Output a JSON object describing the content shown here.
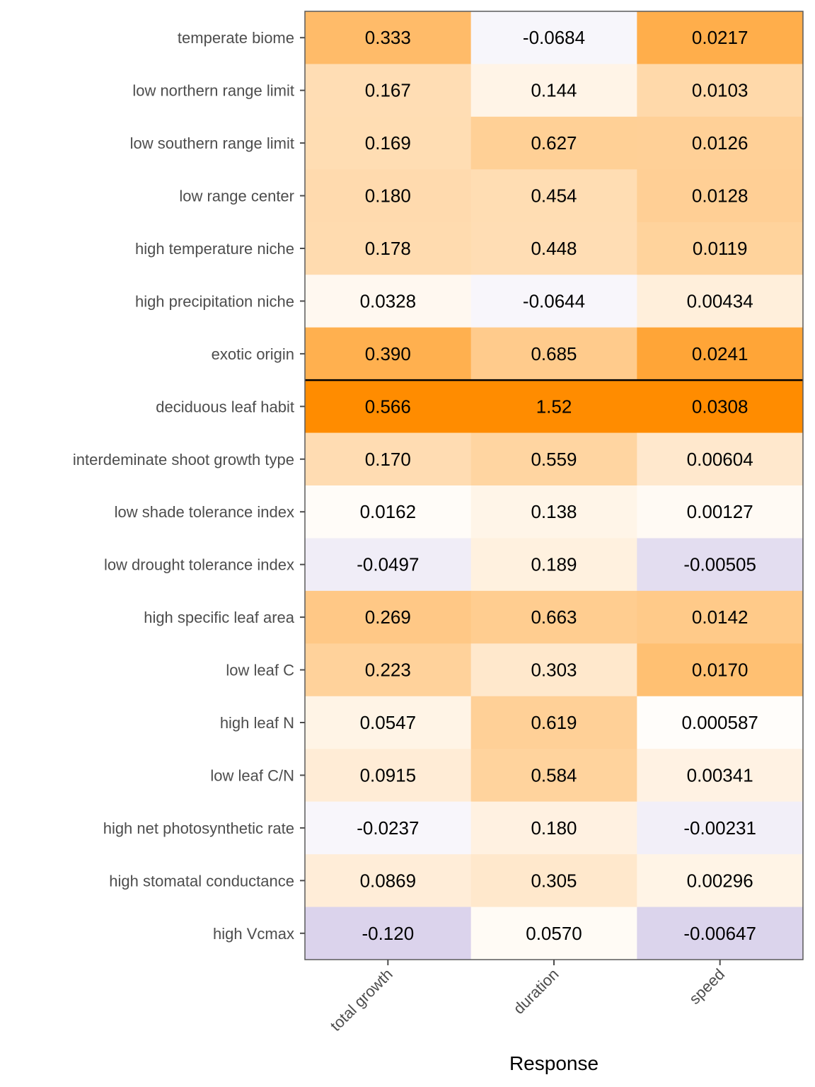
{
  "chart_data": {
    "type": "heatmap",
    "title": "",
    "xlabel": "Response",
    "ylabel": "",
    "columns": [
      "total growth",
      "duration",
      "speed"
    ],
    "rows": [
      "temperate biome",
      "low northern range limit",
      "low southern range limit",
      "low range center",
      "high temperature niche",
      "high precipitation niche",
      "exotic origin",
      "deciduous leaf habit",
      "interdeminate shoot growth type",
      "low shade tolerance index",
      "low drought tolerance index",
      "high specific leaf area",
      "low leaf C",
      "high leaf N",
      "low leaf C/N",
      "high net photosynthetic rate",
      "high stomatal conductance",
      "high Vcmax"
    ],
    "values": [
      [
        0.333,
        -0.0684,
        0.0217
      ],
      [
        0.167,
        0.144,
        0.0103
      ],
      [
        0.169,
        0.627,
        0.0126
      ],
      [
        0.18,
        0.454,
        0.0128
      ],
      [
        0.178,
        0.448,
        0.0119
      ],
      [
        0.0328,
        -0.0644,
        0.00434
      ],
      [
        0.39,
        0.685,
        0.0241
      ],
      [
        0.566,
        1.52,
        0.0308
      ],
      [
        0.17,
        0.559,
        0.00604
      ],
      [
        0.0162,
        0.138,
        0.00127
      ],
      [
        -0.0497,
        0.189,
        -0.00505
      ],
      [
        0.269,
        0.663,
        0.0142
      ],
      [
        0.223,
        0.303,
        0.017
      ],
      [
        0.0547,
        0.619,
        0.000587
      ],
      [
        0.0915,
        0.584,
        0.00341
      ],
      [
        -0.0237,
        0.18,
        -0.00231
      ],
      [
        0.0869,
        0.305,
        0.00296
      ],
      [
        -0.12,
        0.057,
        -0.00647
      ]
    ],
    "labels": [
      [
        "0.333",
        "-0.0684",
        "0.0217"
      ],
      [
        "0.167",
        "0.144",
        "0.0103"
      ],
      [
        "0.169",
        "0.627",
        "0.0126"
      ],
      [
        "0.180",
        "0.454",
        "0.0128"
      ],
      [
        "0.178",
        "0.448",
        "0.0119"
      ],
      [
        "0.0328",
        "-0.0644",
        "0.00434"
      ],
      [
        "0.390",
        "0.685",
        "0.0241"
      ],
      [
        "0.566",
        "1.52",
        "0.0308"
      ],
      [
        "0.170",
        "0.559",
        "0.00604"
      ],
      [
        "0.0162",
        "0.138",
        "0.00127"
      ],
      [
        "-0.0497",
        "0.189",
        "-0.00505"
      ],
      [
        "0.269",
        "0.663",
        "0.0142"
      ],
      [
        "0.223",
        "0.303",
        "0.0170"
      ],
      [
        "0.0547",
        "0.619",
        "0.000587"
      ],
      [
        "0.0915",
        "0.584",
        "0.00341"
      ],
      [
        "-0.0237",
        "0.180",
        "-0.00231"
      ],
      [
        "0.0869",
        "0.305",
        "0.00296"
      ],
      [
        "-0.120",
        "0.0570",
        "-0.00647"
      ]
    ],
    "separator_after_row": "exotic origin",
    "color_scale": {
      "type": "diverging",
      "negative": "#b2a1d6",
      "zero": "#ffffff",
      "positive": "#ff8c00",
      "normalization": "per-column"
    },
    "legend": "none",
    "grid": false
  }
}
